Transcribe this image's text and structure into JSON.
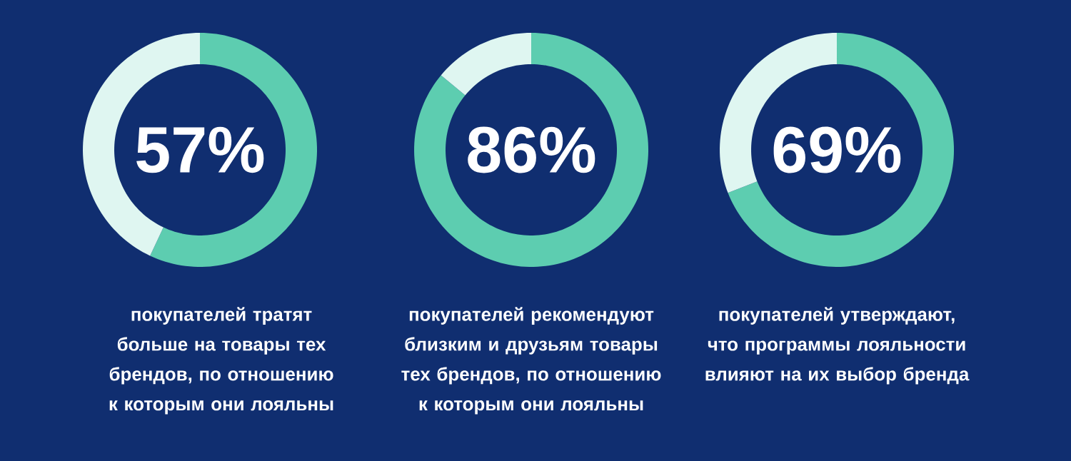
{
  "chart_data": [
    {
      "type": "donut",
      "categories": [
        null,
        null
      ],
      "values": [
        57,
        43
      ],
      "colors": [
        "#5dcdb0",
        "#dff6f1"
      ],
      "value_labels": [
        "57%",
        null
      ],
      "annotations": [
        "покупателей тратят больше на товары тех брендов, по отношению к которым они лояльны"
      ]
    },
    {
      "type": "donut",
      "categories": [
        null,
        null
      ],
      "values": [
        86,
        14
      ],
      "colors": [
        "#5dcdb0",
        "#dff6f1"
      ],
      "value_labels": [
        "86%",
        null
      ],
      "annotations": [
        "покупателей рекомендуют близким и друзьям товары тех брендов, по отношению к которым они лояльны"
      ]
    },
    {
      "type": "donut",
      "categories": [
        null,
        null
      ],
      "values": [
        69,
        31
      ],
      "colors": [
        "#5dcdb0",
        "#dff6f1"
      ],
      "value_labels": [
        "69%",
        null
      ],
      "annotations": [
        "покупателей утверждают, что программы лояльности влияют на их выбор бренда"
      ]
    }
  ]
}
